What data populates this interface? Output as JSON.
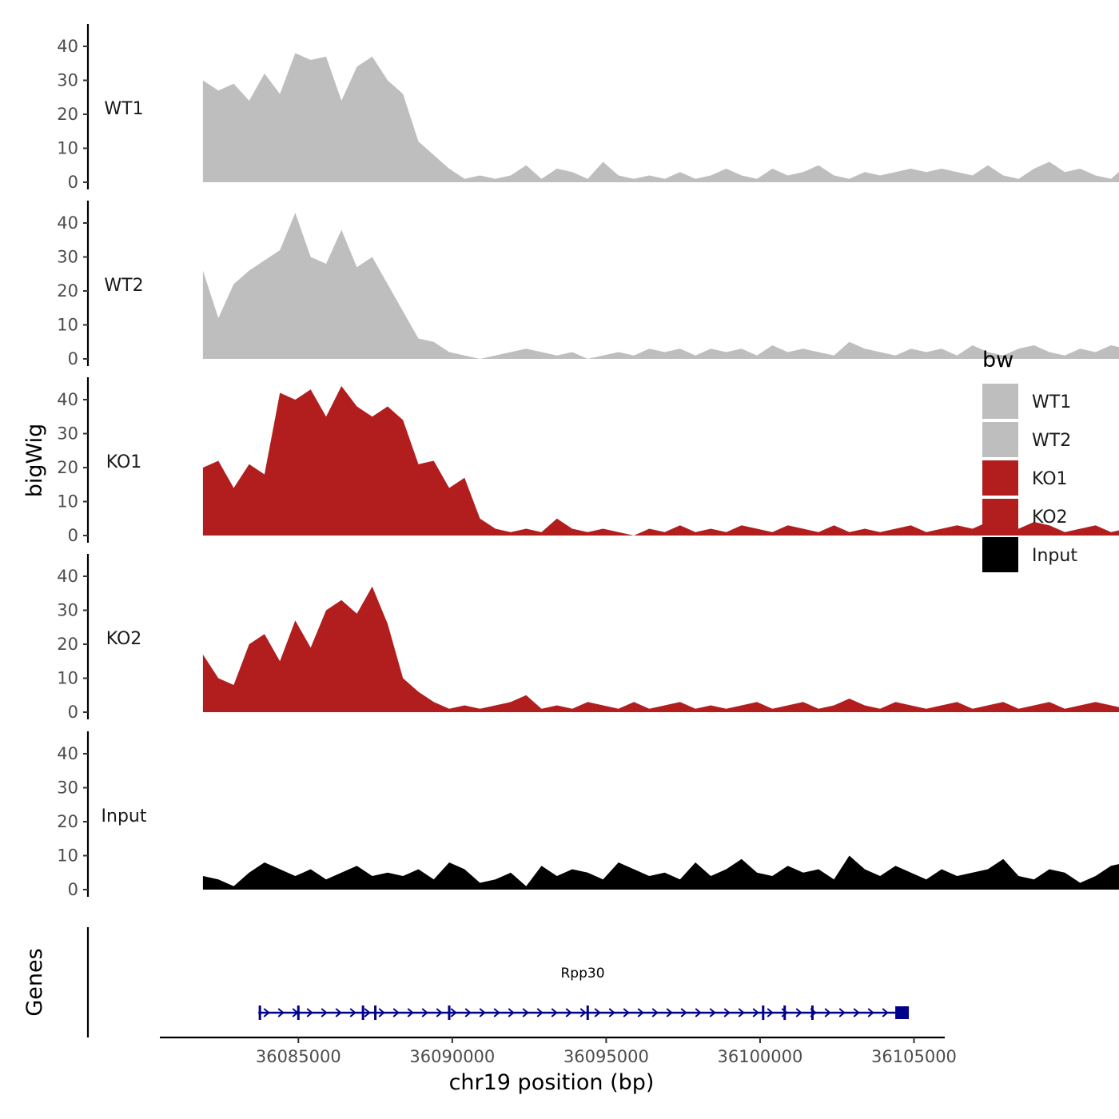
{
  "chart_data": {
    "type": "area",
    "ylabel": "bigWig",
    "xlabel": "chr19 position (bp)",
    "xlim": [
      36080500,
      36106000
    ],
    "x_ticks": [
      {
        "value": 36085000,
        "label": "36085000"
      },
      {
        "value": 36090000,
        "label": "36090000"
      },
      {
        "value": 36095000,
        "label": "36095000"
      },
      {
        "value": 36100000,
        "label": "36100000"
      },
      {
        "value": 36105000,
        "label": "36105000"
      }
    ],
    "ylim": [
      0,
      45
    ],
    "y_ticks": [
      {
        "value": 0,
        "label": "0"
      },
      {
        "value": 10,
        "label": "10"
      },
      {
        "value": 20,
        "label": "20"
      },
      {
        "value": 30,
        "label": "30"
      },
      {
        "value": 40,
        "label": "40"
      }
    ],
    "legend": {
      "title": "bw",
      "position": "right",
      "items": [
        {
          "label": "WT1",
          "color": "#bebebe"
        },
        {
          "label": "WT2",
          "color": "#bebebe"
        },
        {
          "label": "KO1",
          "color": "#b21e1e"
        },
        {
          "label": "KO2",
          "color": "#b21e1e"
        },
        {
          "label": "Input",
          "color": "#000000"
        }
      ]
    },
    "x_start": 36081900,
    "x_step": 500,
    "series": [
      {
        "name": "WT1",
        "label": "WT1",
        "color": "#bebebe",
        "values": [
          30,
          27,
          29,
          24,
          32,
          26,
          38,
          36,
          37,
          24,
          34,
          37,
          30,
          26,
          12,
          8,
          4,
          1,
          2,
          1,
          2,
          5,
          1,
          4,
          3,
          1,
          6,
          2,
          1,
          2,
          1,
          3,
          1,
          2,
          4,
          2,
          1,
          4,
          2,
          3,
          5,
          2,
          1,
          3,
          2,
          3,
          4,
          3,
          4,
          3,
          2,
          5,
          2,
          1,
          4,
          6,
          3,
          4,
          2,
          1,
          5,
          3,
          2,
          1,
          2,
          5,
          3,
          4,
          2,
          1,
          2,
          3,
          4,
          5,
          3,
          6,
          3,
          12,
          5,
          4,
          5,
          3,
          9,
          2
        ]
      },
      {
        "name": "WT2",
        "label": "WT2",
        "color": "#bebebe",
        "values": [
          26,
          12,
          22,
          26,
          29,
          32,
          43,
          30,
          28,
          38,
          27,
          30,
          22,
          14,
          6,
          5,
          2,
          1,
          0,
          1,
          2,
          3,
          2,
          1,
          2,
          0,
          1,
          2,
          1,
          3,
          2,
          3,
          1,
          3,
          2,
          3,
          1,
          4,
          2,
          3,
          2,
          1,
          5,
          3,
          2,
          1,
          3,
          2,
          3,
          1,
          4,
          2,
          1,
          3,
          4,
          2,
          1,
          3,
          2,
          4,
          3,
          2,
          1,
          4,
          5,
          3,
          2,
          1,
          5,
          2,
          3,
          4,
          7,
          5,
          4,
          3,
          2,
          3,
          2,
          5,
          4,
          7,
          4,
          9,
          6,
          3,
          4,
          8,
          5,
          3
        ]
      },
      {
        "name": "KO1",
        "label": "KO1",
        "color": "#b21e1e",
        "values": [
          20,
          22,
          14,
          21,
          18,
          42,
          40,
          43,
          35,
          44,
          38,
          35,
          38,
          34,
          21,
          22,
          14,
          17,
          5,
          2,
          1,
          2,
          1,
          5,
          2,
          1,
          2,
          1,
          0,
          2,
          1,
          3,
          1,
          2,
          1,
          3,
          2,
          1,
          3,
          2,
          1,
          3,
          1,
          2,
          1,
          2,
          3,
          1,
          2,
          3,
          2,
          4,
          1,
          2,
          4,
          3,
          1,
          2,
          3,
          1,
          2,
          4,
          2,
          3,
          1,
          2,
          3,
          4,
          2,
          1,
          3,
          2,
          1,
          2,
          5,
          6,
          3,
          2,
          1,
          4,
          7,
          5,
          3,
          4,
          2
        ]
      },
      {
        "name": "KO2",
        "label": "KO2",
        "color": "#b21e1e",
        "values": [
          17,
          10,
          8,
          20,
          23,
          15,
          27,
          19,
          30,
          33,
          29,
          37,
          26,
          10,
          6,
          3,
          1,
          2,
          1,
          2,
          3,
          5,
          1,
          2,
          1,
          3,
          2,
          1,
          3,
          1,
          2,
          3,
          1,
          2,
          1,
          2,
          3,
          1,
          2,
          3,
          1,
          2,
          4,
          2,
          1,
          3,
          2,
          1,
          2,
          3,
          1,
          2,
          3,
          1,
          2,
          3,
          1,
          2,
          3,
          2,
          1,
          4,
          2,
          3,
          1,
          2,
          1,
          3,
          2,
          1,
          2,
          4,
          2,
          1,
          2,
          9,
          3,
          5,
          2,
          1,
          6,
          4,
          2,
          9,
          5,
          4,
          3
        ]
      },
      {
        "name": "Input",
        "label": "Input",
        "color": "#000000",
        "values": [
          4,
          3,
          1,
          5,
          8,
          6,
          4,
          6,
          3,
          5,
          7,
          4,
          5,
          4,
          6,
          3,
          8,
          6,
          2,
          3,
          5,
          1,
          7,
          4,
          6,
          5,
          3,
          8,
          6,
          4,
          5,
          3,
          8,
          4,
          6,
          9,
          5,
          4,
          7,
          5,
          6,
          3,
          10,
          6,
          4,
          7,
          5,
          3,
          6,
          4,
          5,
          6,
          9,
          4,
          3,
          6,
          5,
          2,
          4,
          7,
          8,
          6,
          4,
          5,
          7,
          6,
          3,
          5,
          8,
          6,
          4,
          5,
          9,
          6,
          7,
          4,
          5,
          8,
          6,
          4,
          5,
          10,
          8,
          7,
          4,
          6,
          5,
          3
        ]
      }
    ],
    "genes": {
      "title": "Genes",
      "gene_name": "Rpp30",
      "color": "#00008b",
      "start": 36083700,
      "end": 36104700,
      "strand": "+",
      "exons": [
        36083750,
        36085000,
        36087100,
        36087500,
        36089900,
        36094400,
        36100100,
        36100800,
        36101700,
        36104600
      ]
    }
  }
}
